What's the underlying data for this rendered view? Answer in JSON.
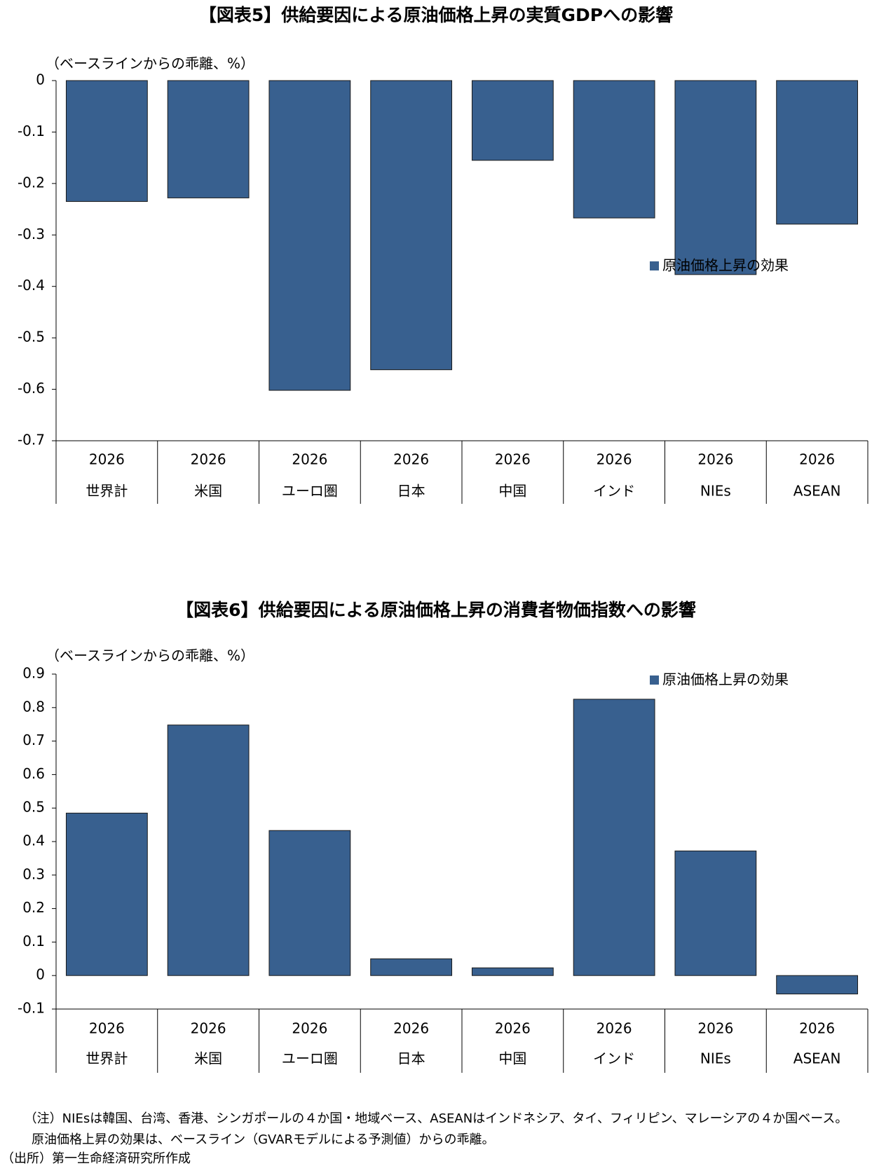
{
  "chart_data": [
    {
      "type": "bar",
      "title": "【図表5】供給要因による原油価格上昇の実質GDPへの影響",
      "y_label": "（ベースラインからの乖離、%）",
      "categories": [
        "世界計",
        "米国",
        "ユーロ圏",
        "日本",
        "中国",
        "インド",
        "NIEs",
        "ASEAN"
      ],
      "category_years": [
        "2026",
        "2026",
        "2026",
        "2026",
        "2026",
        "2026",
        "2026",
        "2026"
      ],
      "series": [
        {
          "name": "原油価格上昇の効果",
          "color": "#38608f",
          "values": [
            -0.235,
            -0.228,
            -0.602,
            -0.562,
            -0.155,
            -0.267,
            -0.377,
            -0.279
          ]
        }
      ],
      "ylim": [
        -0.7,
        0
      ],
      "yticks": [
        0,
        -0.1,
        -0.2,
        -0.3,
        -0.4,
        -0.5,
        -0.6,
        -0.7
      ],
      "legend": "right"
    },
    {
      "type": "bar",
      "title": "【図表6】供給要因による原油価格上昇の消費者物価指数への影響",
      "y_label": "（ベースラインからの乖離、%）",
      "categories": [
        "世界計",
        "米国",
        "ユーロ圏",
        "日本",
        "中国",
        "インド",
        "NIEs",
        "ASEAN"
      ],
      "category_years": [
        "2026",
        "2026",
        "2026",
        "2026",
        "2026",
        "2026",
        "2026",
        "2026"
      ],
      "series": [
        {
          "name": "原油価格上昇の効果",
          "color": "#38608f",
          "values": [
            0.485,
            0.748,
            0.433,
            0.05,
            0.023,
            0.825,
            0.372,
            -0.055
          ]
        }
      ],
      "ylim": [
        -0.1,
        0.9
      ],
      "yticks": [
        0.9,
        0.8,
        0.7,
        0.6,
        0.5,
        0.4,
        0.3,
        0.2,
        0.1,
        0,
        -0.1
      ],
      "legend": "upper right"
    }
  ],
  "notes": [
    "（注）NIEsは韓国、台湾、香港、シンガポールの４か国・地域ベース、ASEANはインドネシア、タイ、フィリピン、マレーシアの４か国ベース。",
    "原油価格上昇の効果は、ベースライン（GVARモデルによる予測値）からの乖離。",
    "（出所）第一生命経済研究所作成"
  ]
}
